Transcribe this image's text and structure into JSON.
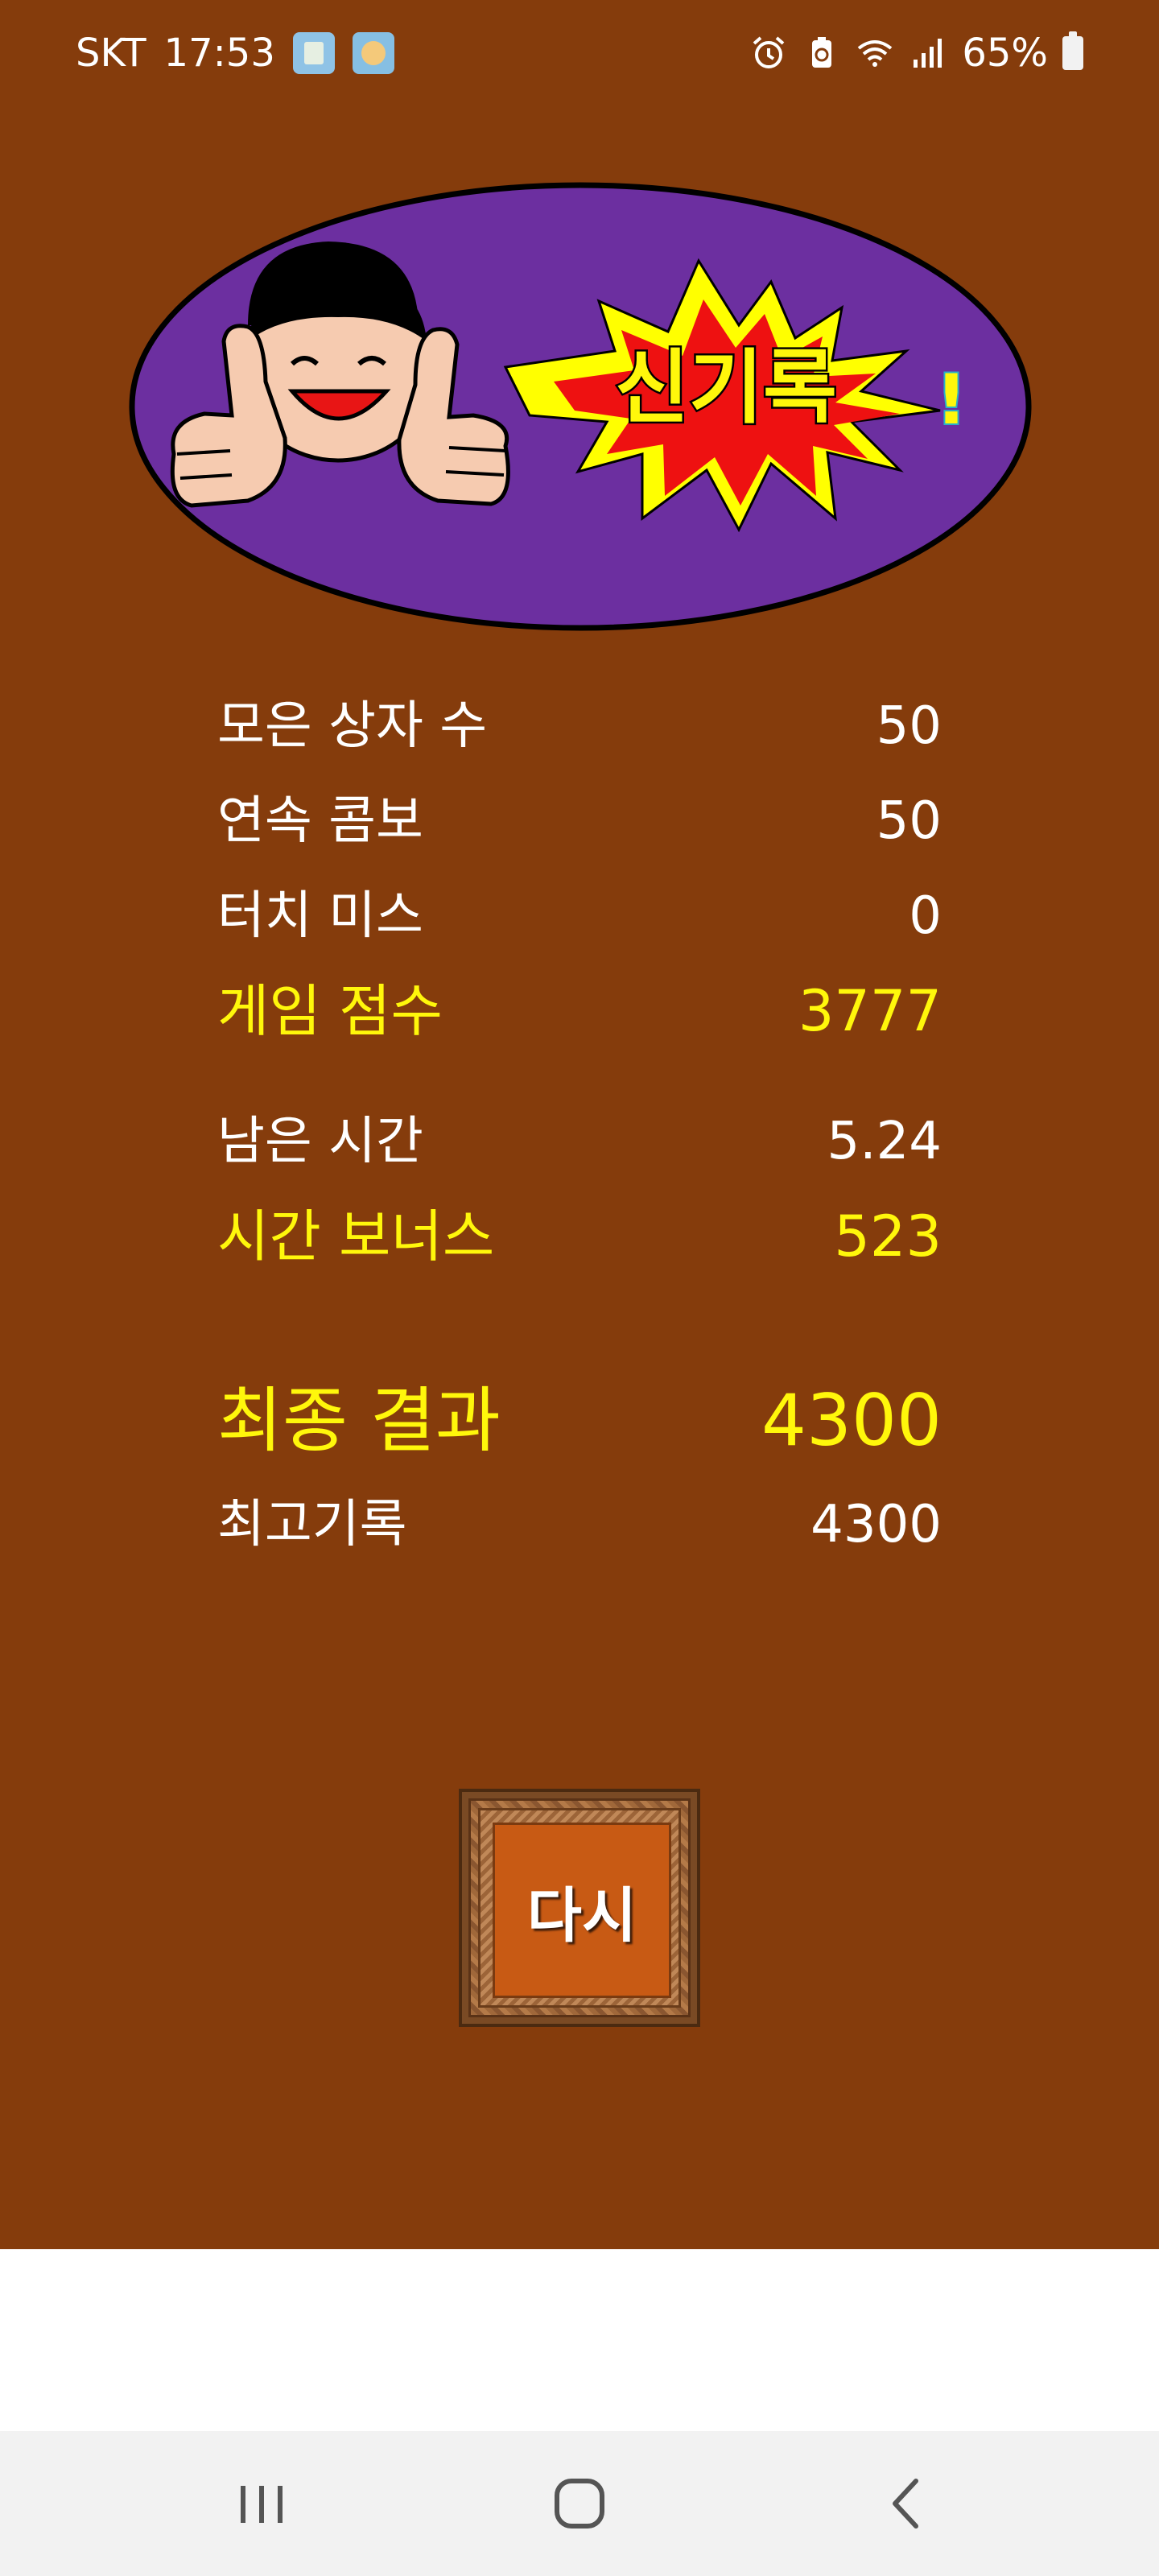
{
  "status_bar": {
    "carrier": "SKT",
    "time": "17:53",
    "battery_percent": "65%",
    "icons": [
      "notification-app-icon",
      "notification-compass-icon",
      "alarm-icon",
      "battery-saver-icon",
      "wifi-icon",
      "signal-icon",
      "battery-icon"
    ]
  },
  "banner": {
    "text": "신기록",
    "partial_text": "!"
  },
  "stats": {
    "boxes_collected": {
      "label": "모은 상자 수",
      "value": "50"
    },
    "combo": {
      "label": "연속 콤보",
      "value": "50"
    },
    "touch_miss": {
      "label": "터치 미스",
      "value": "0"
    },
    "game_score": {
      "label": "게임 점수",
      "value": "3777"
    },
    "time_left": {
      "label": "남은 시간",
      "value": "5.24"
    },
    "time_bonus": {
      "label": "시간 보너스",
      "value": "523"
    },
    "final_result": {
      "label": "최종 결과",
      "value": "4300"
    },
    "best_record": {
      "label": "최고기록",
      "value": "4300"
    }
  },
  "retry_button": {
    "label": "다시"
  },
  "colors": {
    "background": "#853c0c",
    "highlight": "#fff70b",
    "banner_purple": "#6c2fa0",
    "burst_red": "#ee1111",
    "burst_yellow": "#ffff00"
  },
  "nav": {
    "buttons": [
      "recent-apps-icon",
      "home-icon",
      "back-icon"
    ]
  }
}
